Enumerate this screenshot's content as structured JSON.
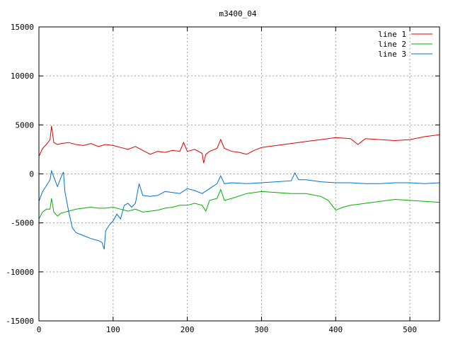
{
  "chart_data": {
    "type": "line",
    "title": "m3400_04",
    "xlim": [
      0,
      540
    ],
    "ylim": [
      -15000,
      15000
    ],
    "xticks": [
      0,
      100,
      200,
      300,
      400,
      500
    ],
    "yticks": [
      -15000,
      -10000,
      -5000,
      0,
      5000,
      10000,
      15000
    ],
    "grid": true,
    "legend_position": "top-right",
    "series": [
      {
        "name": "line 1",
        "color": "#e00000",
        "x": [
          0,
          5,
          10,
          15,
          17,
          20,
          25,
          30,
          40,
          50,
          60,
          70,
          80,
          90,
          100,
          110,
          120,
          130,
          140,
          150,
          160,
          170,
          180,
          190,
          195,
          200,
          210,
          220,
          222,
          225,
          230,
          240,
          245,
          250,
          260,
          270,
          280,
          290,
          300,
          320,
          340,
          360,
          380,
          400,
          420,
          430,
          440,
          460,
          480,
          500,
          520,
          540
        ],
        "y": [
          1800,
          2600,
          3000,
          3500,
          4900,
          3200,
          3000,
          3100,
          3200,
          3000,
          2900,
          3100,
          2800,
          3000,
          2900,
          2700,
          2500,
          2800,
          2400,
          2000,
          2300,
          2200,
          2400,
          2300,
          3200,
          2300,
          2500,
          2100,
          1100,
          2000,
          2300,
          2600,
          3500,
          2600,
          2300,
          2200,
          2000,
          2400,
          2700,
          2900,
          3100,
          3300,
          3500,
          3700,
          3600,
          3000,
          3600,
          3500,
          3400,
          3500,
          3800,
          4000
        ]
      },
      {
        "name": "line 2",
        "color": "#00b000",
        "x": [
          0,
          5,
          10,
          15,
          17,
          20,
          25,
          30,
          40,
          50,
          60,
          70,
          80,
          90,
          100,
          110,
          120,
          130,
          140,
          150,
          160,
          170,
          180,
          190,
          200,
          210,
          220,
          225,
          230,
          240,
          245,
          250,
          260,
          280,
          300,
          320,
          340,
          360,
          380,
          390,
          400,
          410,
          420,
          440,
          460,
          480,
          500,
          520,
          540
        ],
        "y": [
          -4600,
          -3900,
          -3600,
          -3600,
          -2500,
          -3900,
          -4300,
          -4000,
          -3800,
          -3600,
          -3500,
          -3400,
          -3500,
          -3500,
          -3400,
          -3600,
          -3800,
          -3600,
          -3900,
          -3800,
          -3700,
          -3500,
          -3400,
          -3200,
          -3200,
          -3000,
          -3200,
          -3800,
          -2700,
          -2500,
          -1600,
          -2700,
          -2500,
          -2000,
          -1800,
          -1900,
          -2000,
          -2000,
          -2300,
          -2700,
          -3700,
          -3400,
          -3200,
          -3000,
          -2800,
          -2600,
          -2700,
          -2800,
          -2900
        ]
      },
      {
        "name": "line 3",
        "color": "#0070d0",
        "x": [
          0,
          5,
          10,
          15,
          17,
          20,
          25,
          30,
          33,
          35,
          40,
          45,
          50,
          60,
          70,
          80,
          85,
          88,
          90,
          95,
          100,
          105,
          110,
          115,
          120,
          125,
          130,
          135,
          140,
          150,
          160,
          170,
          180,
          190,
          200,
          210,
          220,
          230,
          240,
          245,
          250,
          260,
          280,
          300,
          320,
          340,
          345,
          350,
          360,
          380,
          400,
          420,
          440,
          460,
          480,
          500,
          520,
          540
        ],
        "y": [
          -2800,
          -1800,
          -1200,
          -600,
          300,
          -300,
          -1300,
          -300,
          200,
          -1800,
          -3800,
          -5500,
          -6000,
          -6300,
          -6600,
          -6800,
          -7000,
          -7700,
          -5800,
          -5200,
          -4800,
          -4100,
          -4600,
          -3200,
          -3000,
          -3400,
          -3000,
          -1000,
          -2200,
          -2300,
          -2200,
          -1800,
          -1900,
          -2000,
          -1500,
          -1700,
          -2000,
          -1500,
          -1000,
          -200,
          -1000,
          -900,
          -1000,
          -900,
          -800,
          -700,
          100,
          -600,
          -600,
          -800,
          -900,
          -900,
          -1000,
          -1000,
          -900,
          -900,
          -1000,
          -900
        ]
      }
    ]
  }
}
